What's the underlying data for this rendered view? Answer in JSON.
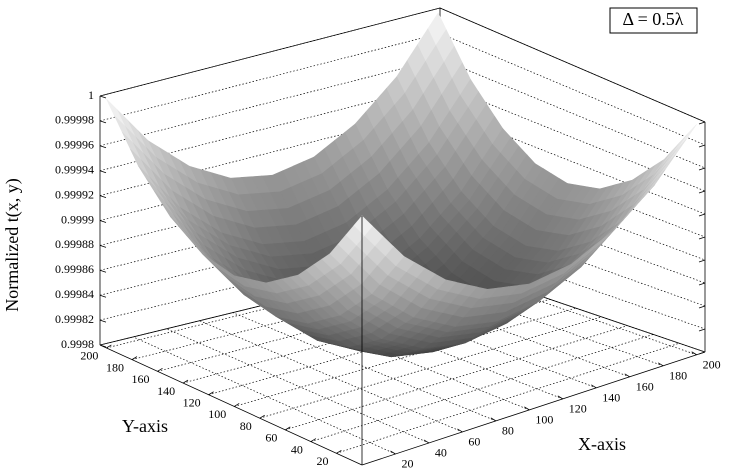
{
  "chart_data": {
    "type": "surface",
    "zlabel": "Normalized t(x, y)",
    "xlabel": "X-axis",
    "ylabel": "Y-axis",
    "annotation": "Δ = 0.5λ",
    "x": [
      0,
      25,
      50,
      75,
      100,
      125,
      150,
      175,
      200
    ],
    "y": [
      0,
      25,
      50,
      75,
      100,
      125,
      150,
      175,
      200
    ],
    "z": [
      [
        1,
        0.999958,
        0.999929,
        0.999911,
        0.999905,
        0.999911,
        0.999929,
        0.999958,
        1
      ],
      [
        0.999958,
        0.999916,
        0.999887,
        0.999869,
        0.999863,
        0.999869,
        0.999887,
        0.999916,
        0.999958
      ],
      [
        0.999929,
        0.999887,
        0.999858,
        0.99984,
        0.999834,
        0.99984,
        0.999858,
        0.999887,
        0.999929
      ],
      [
        0.999911,
        0.999869,
        0.99984,
        0.999822,
        0.999816,
        0.999822,
        0.99984,
        0.999869,
        0.999911
      ],
      [
        0.999905,
        0.999863,
        0.999834,
        0.999816,
        0.99981,
        0.999816,
        0.999834,
        0.999863,
        0.999905
      ],
      [
        0.999911,
        0.999869,
        0.99984,
        0.999822,
        0.999816,
        0.999822,
        0.99984,
        0.999869,
        0.999911
      ],
      [
        0.999929,
        0.999887,
        0.999858,
        0.99984,
        0.999834,
        0.99984,
        0.999858,
        0.999887,
        0.999929
      ],
      [
        0.999958,
        0.999916,
        0.999887,
        0.999869,
        0.999863,
        0.999869,
        0.999887,
        0.999916,
        0.999958
      ],
      [
        1,
        0.999958,
        0.999929,
        0.999911,
        0.999905,
        0.999911,
        0.999929,
        0.999958,
        1
      ]
    ],
    "xlim": [
      0,
      205
    ],
    "ylim": [
      0,
      205
    ],
    "zlim": [
      0.9998,
      1
    ],
    "xticks": [
      20,
      40,
      60,
      80,
      100,
      120,
      140,
      160,
      180,
      200
    ],
    "yticks": [
      20,
      40,
      60,
      80,
      100,
      120,
      140,
      160,
      180,
      200
    ],
    "zticks": [
      0.9998,
      0.99982,
      0.99984,
      0.99986,
      0.99988,
      0.9999,
      0.99992,
      0.99994,
      0.99996,
      0.99998,
      1
    ],
    "grid": true
  }
}
